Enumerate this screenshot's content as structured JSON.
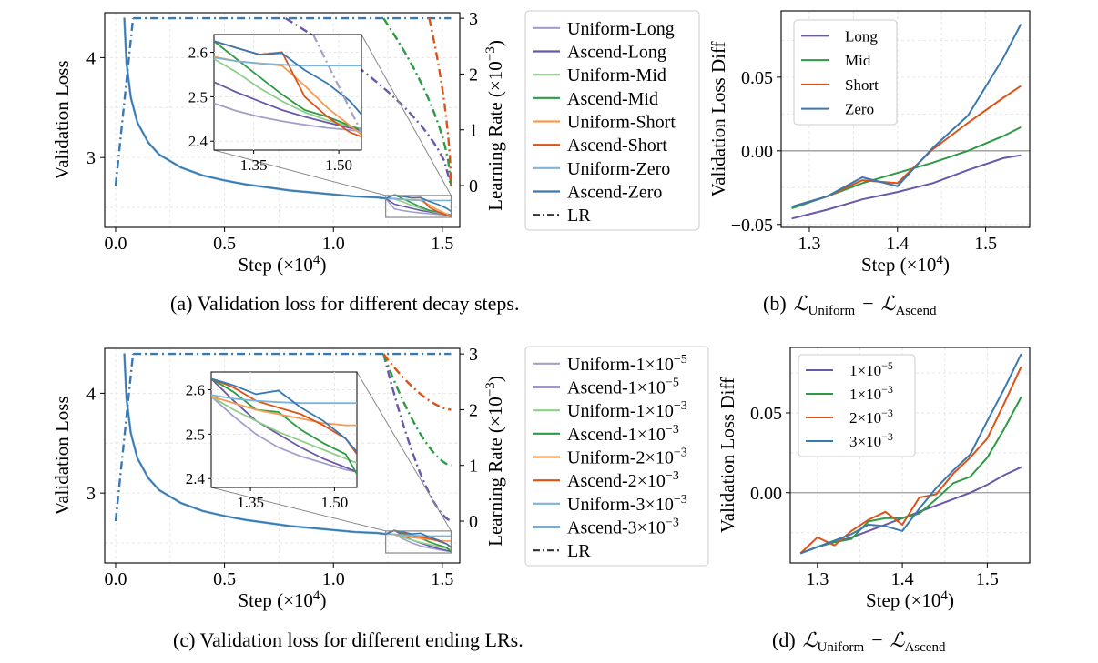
{
  "colors": {
    "uniform_long": "#a39fcb",
    "ascend_long": "#6a58a8",
    "uniform_mid": "#8fcf8a",
    "ascend_mid": "#2e9a45",
    "uniform_short": "#f59a52",
    "ascend_short": "#dc5318",
    "uniform_zero": "#7db4d8",
    "ascend_zero": "#3a78b0",
    "grid": "#e6e6e6",
    "zero_line": "#999999",
    "inset_box": "#888888"
  },
  "captions": {
    "a": "(a)  Validation loss for different decay steps.",
    "b_prefix": "(b)",
    "c": "(c)  Validation loss for different ending LRs.",
    "d_prefix": "(d)"
  },
  "formula": {
    "L": "ℒ",
    "uniform": "Uniform",
    "minus": "−",
    "ascend": "Ascend"
  },
  "axes": {
    "step_label": "Step (×10",
    "step_exp": "4",
    "val_loss": "Validation Loss",
    "lr_label": "Learning Rate (×10",
    "lr_exp": "−3",
    "diff_label": "Validation Loss Diff"
  },
  "chart_data": [
    {
      "id": "a",
      "type": "line",
      "xlim": [
        -0.05,
        1.58
      ],
      "ylim": [
        2.3,
        4.45
      ],
      "y2lim": [
        -0.75,
        3.1
      ],
      "xticks": [
        "0.0",
        "0.5",
        "1.0",
        "1.5"
      ],
      "yticks": [
        "3",
        "4"
      ],
      "y2ticks": [
        "0",
        "1",
        "2",
        "3"
      ],
      "legend": [
        "Uniform-Long",
        "Ascend-Long",
        "Uniform-Mid",
        "Ascend-Mid",
        "Uniform-Short",
        "Ascend-Short",
        "Uniform-Zero",
        "Ascend-Zero",
        "LR"
      ],
      "legend_placement": "outside-right",
      "loss_points": [
        [
          0.04,
          4.4
        ],
        [
          0.05,
          3.95
        ],
        [
          0.07,
          3.6
        ],
        [
          0.1,
          3.35
        ],
        [
          0.15,
          3.15
        ],
        [
          0.2,
          3.03
        ],
        [
          0.3,
          2.9
        ],
        [
          0.4,
          2.82
        ],
        [
          0.5,
          2.77
        ],
        [
          0.6,
          2.73
        ],
        [
          0.7,
          2.7
        ],
        [
          0.8,
          2.67
        ],
        [
          0.9,
          2.65
        ],
        [
          1.0,
          2.63
        ],
        [
          1.1,
          2.61
        ],
        [
          1.2,
          2.6
        ],
        [
          1.24,
          2.59
        ]
      ],
      "lr": [
        {
          "name": "Long",
          "start": 0.78,
          "end": 1.54
        },
        {
          "name": "Mid",
          "start": 1.23,
          "end": 1.54
        },
        {
          "name": "Short",
          "start": 1.44,
          "end": 1.54
        },
        {
          "name": "Zero",
          "start": null,
          "end": 1.54
        }
      ],
      "lr_peak": 3.0,
      "warmup_end": 0.08,
      "inset": {
        "xlim": [
          1.28,
          1.54
        ],
        "ylim": [
          2.38,
          2.64
        ],
        "xticks": [
          "1.35",
          "1.50"
        ],
        "yticks": [
          "2.4",
          "2.5",
          "2.6"
        ],
        "source_xlim": [
          1.24,
          1.54
        ],
        "source_ylim": [
          2.4,
          2.62
        ]
      },
      "series": [
        {
          "name": "Uniform-Long",
          "x": [
            1.28,
            1.32,
            1.36,
            1.4,
            1.44,
            1.48,
            1.52,
            1.54
          ],
          "y": [
            2.485,
            2.468,
            2.455,
            2.445,
            2.437,
            2.43,
            2.425,
            2.422
          ]
        },
        {
          "name": "Ascend-Long",
          "x": [
            1.28,
            1.32,
            1.36,
            1.4,
            1.44,
            1.48,
            1.52,
            1.54
          ],
          "y": [
            2.533,
            2.51,
            2.49,
            2.47,
            2.455,
            2.442,
            2.43,
            2.425
          ]
        },
        {
          "name": "Uniform-Mid",
          "x": [
            1.28,
            1.32,
            1.36,
            1.4,
            1.44,
            1.48,
            1.52,
            1.54
          ],
          "y": [
            2.585,
            2.555,
            2.52,
            2.49,
            2.465,
            2.447,
            2.433,
            2.428
          ]
        },
        {
          "name": "Ascend-Mid",
          "x": [
            1.28,
            1.32,
            1.36,
            1.4,
            1.44,
            1.48,
            1.52,
            1.54
          ],
          "y": [
            2.625,
            2.585,
            2.545,
            2.505,
            2.47,
            2.455,
            2.435,
            2.425
          ]
        },
        {
          "name": "Uniform-Short",
          "x": [
            1.28,
            1.32,
            1.36,
            1.4,
            1.44,
            1.48,
            1.52,
            1.54
          ],
          "y": [
            2.59,
            2.58,
            2.575,
            2.57,
            2.525,
            2.475,
            2.435,
            2.415
          ]
        },
        {
          "name": "Ascend-Short",
          "x": [
            1.28,
            1.32,
            1.36,
            1.4,
            1.44,
            1.48,
            1.52,
            1.54
          ],
          "y": [
            2.625,
            2.61,
            2.595,
            2.6,
            2.5,
            2.455,
            2.42,
            2.41
          ]
        },
        {
          "name": "Uniform-Zero",
          "x": [
            1.28,
            1.32,
            1.36,
            1.4,
            1.44,
            1.48,
            1.52,
            1.54
          ],
          "y": [
            2.588,
            2.58,
            2.575,
            2.572,
            2.57,
            2.57,
            2.57,
            2.57
          ]
        },
        {
          "name": "Ascend-Zero",
          "x": [
            1.28,
            1.32,
            1.36,
            1.4,
            1.44,
            1.48,
            1.52,
            1.54
          ],
          "y": [
            2.625,
            2.61,
            2.595,
            2.598,
            2.56,
            2.53,
            2.49,
            2.46
          ]
        }
      ]
    },
    {
      "id": "b",
      "type": "line",
      "xlim": [
        1.268,
        1.55
      ],
      "ylim": [
        -0.052,
        0.095
      ],
      "xticks": [
        1.3,
        1.4,
        1.5
      ],
      "yticks": [
        0.05,
        0.0,
        -0.05
      ],
      "ytick_labels": [
        "0.05",
        "0.00",
        "−0.05"
      ],
      "xtick_labels": [
        "1.3",
        "1.4",
        "1.5"
      ],
      "zero_line": true,
      "legend_placement": "upper-left",
      "x": [
        1.28,
        1.32,
        1.36,
        1.4,
        1.44,
        1.48,
        1.52,
        1.54
      ],
      "series": [
        {
          "name": "Long",
          "values": [
            -0.046,
            -0.04,
            -0.033,
            -0.028,
            -0.022,
            -0.013,
            -0.005,
            -0.003
          ]
        },
        {
          "name": "Mid",
          "values": [
            -0.039,
            -0.031,
            -0.022,
            -0.015,
            -0.008,
            0.0,
            0.01,
            0.016
          ]
        },
        {
          "name": "Short",
          "values": [
            -0.038,
            -0.031,
            -0.02,
            -0.022,
            0.001,
            0.019,
            0.036,
            0.044
          ]
        },
        {
          "name": "Zero",
          "values": [
            -0.038,
            -0.031,
            -0.018,
            -0.024,
            0.002,
            0.024,
            0.063,
            0.086
          ]
        }
      ]
    },
    {
      "id": "c",
      "type": "line",
      "xlim": [
        -0.05,
        1.58
      ],
      "ylim": [
        2.3,
        4.45
      ],
      "y2lim": [
        -0.75,
        3.1
      ],
      "xticks": [
        "0.0",
        "0.5",
        "1.0",
        "1.5"
      ],
      "yticks": [
        "3",
        "4"
      ],
      "y2ticks": [
        "0",
        "1",
        "2",
        "3"
      ],
      "legend": [
        "Uniform-1×10",
        "Ascend-1×10",
        "Uniform-1×10",
        "Ascend-1×10",
        "Uniform-2×10",
        "Ascend-2×10",
        "Uniform-3×10",
        "Ascend-3×10",
        "LR"
      ],
      "legend_exp": [
        "−5",
        "−5",
        "−3",
        "−3",
        "−3",
        "−3",
        "−3",
        "−3",
        ""
      ],
      "legend_placement": "outside-right",
      "loss_points": [
        [
          0.04,
          4.4
        ],
        [
          0.05,
          3.95
        ],
        [
          0.07,
          3.6
        ],
        [
          0.1,
          3.35
        ],
        [
          0.15,
          3.15
        ],
        [
          0.2,
          3.03
        ],
        [
          0.3,
          2.9
        ],
        [
          0.4,
          2.82
        ],
        [
          0.5,
          2.77
        ],
        [
          0.6,
          2.73
        ],
        [
          0.7,
          2.7
        ],
        [
          0.8,
          2.67
        ],
        [
          0.9,
          2.65
        ],
        [
          1.0,
          2.63
        ],
        [
          1.1,
          2.61
        ],
        [
          1.2,
          2.6
        ],
        [
          1.24,
          2.59
        ]
      ],
      "lr": [
        {
          "name": "1e-5",
          "start": 1.23,
          "end": 1.54,
          "end_lr": 0.01
        },
        {
          "name": "1e-3",
          "start": 1.23,
          "end": 1.54,
          "end_lr": 1.0
        },
        {
          "name": "2e-3",
          "start": 1.23,
          "end": 1.54,
          "end_lr": 2.0
        }
      ],
      "lr_peak": 3.0,
      "warmup_end": 0.08,
      "inset": {
        "xlim": [
          1.28,
          1.54
        ],
        "ylim": [
          2.38,
          2.64
        ],
        "xticks": [
          "1.35",
          "1.50"
        ],
        "yticks": [
          "2.4",
          "2.5",
          "2.6"
        ],
        "source_xlim": [
          1.24,
          1.54
        ],
        "source_ylim": [
          2.4,
          2.62
        ]
      },
      "series": [
        {
          "name": "Uniform-1e-5",
          "x": [
            1.28,
            1.32,
            1.36,
            1.4,
            1.44,
            1.48,
            1.52,
            1.54
          ],
          "y": [
            2.585,
            2.54,
            2.5,
            2.47,
            2.45,
            2.435,
            2.42,
            2.415
          ]
        },
        {
          "name": "Ascend-1e-5",
          "x": [
            1.28,
            1.32,
            1.36,
            1.4,
            1.44,
            1.48,
            1.52,
            1.54
          ],
          "y": [
            2.625,
            2.575,
            2.53,
            2.5,
            2.47,
            2.445,
            2.425,
            2.415
          ]
        },
        {
          "name": "Uniform-1e-3",
          "x": [
            1.28,
            1.32,
            1.36,
            1.4,
            1.44,
            1.48,
            1.52,
            1.54
          ],
          "y": [
            2.585,
            2.555,
            2.53,
            2.505,
            2.485,
            2.465,
            2.445,
            2.435
          ]
        },
        {
          "name": "Ascend-1e-3",
          "x": [
            1.28,
            1.32,
            1.36,
            1.4,
            1.44,
            1.48,
            1.52,
            1.54
          ],
          "y": [
            2.625,
            2.595,
            2.555,
            2.55,
            2.51,
            2.48,
            2.455,
            2.41
          ]
        },
        {
          "name": "Uniform-2e-3",
          "x": [
            1.28,
            1.32,
            1.36,
            1.4,
            1.44,
            1.48,
            1.52,
            1.54
          ],
          "y": [
            2.585,
            2.57,
            2.555,
            2.545,
            2.535,
            2.525,
            2.52,
            2.52
          ]
        },
        {
          "name": "Ascend-2e-3",
          "x": [
            1.28,
            1.32,
            1.36,
            1.4,
            1.44,
            1.48,
            1.52,
            1.54
          ],
          "y": [
            2.625,
            2.605,
            2.575,
            2.56,
            2.545,
            2.52,
            2.49,
            2.455
          ]
        },
        {
          "name": "Uniform-3e-3",
          "x": [
            1.28,
            1.32,
            1.36,
            1.4,
            1.44,
            1.48,
            1.52,
            1.54
          ],
          "y": [
            2.588,
            2.58,
            2.575,
            2.572,
            2.57,
            2.57,
            2.57,
            2.57
          ]
        },
        {
          "name": "Ascend-3e-3",
          "x": [
            1.28,
            1.32,
            1.36,
            1.4,
            1.44,
            1.48,
            1.52,
            1.54
          ],
          "y": [
            2.625,
            2.61,
            2.59,
            2.598,
            2.56,
            2.53,
            2.49,
            2.46
          ]
        }
      ]
    },
    {
      "id": "d",
      "type": "line",
      "xlim": [
        1.268,
        1.55
      ],
      "ylim": [
        -0.044,
        0.091
      ],
      "xticks": [
        1.3,
        1.4,
        1.5
      ],
      "yticks": [
        0.05,
        0.0
      ],
      "ytick_labels": [
        "0.05",
        "0.00"
      ],
      "xtick_labels": [
        "1.3",
        "1.4",
        "1.5"
      ],
      "zero_line": true,
      "legend_placement": "upper-left",
      "x": [
        1.28,
        1.3,
        1.32,
        1.34,
        1.36,
        1.38,
        1.4,
        1.42,
        1.44,
        1.46,
        1.48,
        1.5,
        1.52,
        1.54
      ],
      "series": [
        {
          "name": "1×10",
          "exp": "−5",
          "values": [
            -0.038,
            -0.034,
            -0.031,
            -0.028,
            -0.024,
            -0.02,
            -0.016,
            -0.012,
            -0.008,
            -0.004,
            0.0,
            0.005,
            0.011,
            0.016
          ]
        },
        {
          "name": "1×10",
          "exp": "−3",
          "values": [
            -0.038,
            -0.034,
            -0.031,
            -0.029,
            -0.018,
            -0.016,
            -0.016,
            -0.013,
            -0.004,
            0.006,
            0.01,
            0.022,
            0.04,
            0.06
          ]
        },
        {
          "name": "2×10",
          "exp": "−3",
          "values": [
            -0.038,
            -0.028,
            -0.033,
            -0.024,
            -0.017,
            -0.012,
            -0.02,
            -0.003,
            -0.001,
            0.012,
            0.022,
            0.034,
            0.056,
            0.079
          ]
        },
        {
          "name": "3×10",
          "exp": "−3",
          "values": [
            -0.038,
            -0.034,
            -0.03,
            -0.026,
            -0.02,
            -0.021,
            -0.024,
            -0.01,
            0.003,
            0.014,
            0.024,
            0.045,
            0.065,
            0.087
          ]
        }
      ]
    }
  ]
}
